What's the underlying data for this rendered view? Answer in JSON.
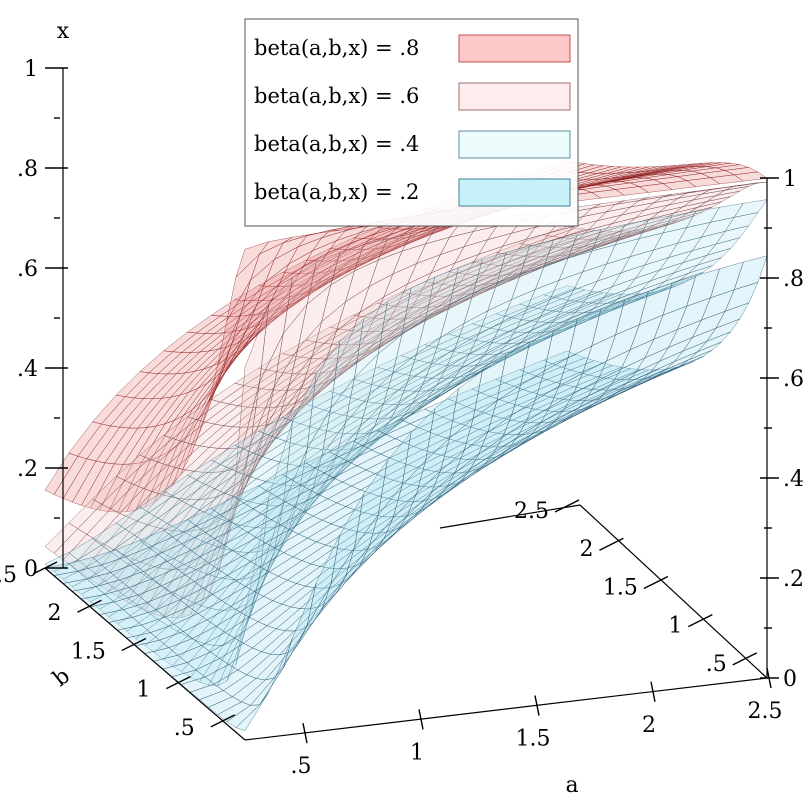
{
  "chart_data": {
    "type": "surface3d",
    "title": "",
    "xlabel": "a",
    "ylabel": "b",
    "zlabel": "x",
    "xlim": [
      0.25,
      2.5
    ],
    "ylim": [
      0.25,
      2.5
    ],
    "zlim": [
      0,
      1
    ],
    "x_ticks": [
      ".5",
      "1",
      "1.5",
      "2",
      "2.5"
    ],
    "y_ticks": [
      ".5",
      "1",
      "1.5",
      "2",
      "2.5"
    ],
    "z_ticks": [
      "0",
      ".2",
      ".4",
      ".6",
      ".8",
      "1"
    ],
    "legend": {
      "position": "top",
      "entries": [
        {
          "label": "beta(a,b,x) = .8",
          "color": "#ffc8c8",
          "stroke": "#c05050"
        },
        {
          "label": "beta(a,b,x) = .6",
          "color": "#ffecec",
          "stroke": "#a07070"
        },
        {
          "label": "beta(a,b,x) = .4",
          "color": "#ecfbfc",
          "stroke": "#5d8fa0"
        },
        {
          "label": "beta(a,b,x) = .2",
          "color": "#c8f2fa",
          "stroke": "#3f7f98"
        }
      ]
    },
    "series": [
      {
        "name": "beta(a,b,x) = .8",
        "level": 0.8,
        "color": "#e88f8f",
        "edge": "#8b1a1a"
      },
      {
        "name": "beta(a,b,x) = .6",
        "level": 0.6,
        "color": "#f3c6c6",
        "edge": "#6b3535"
      },
      {
        "name": "beta(a,b,x) = .4",
        "level": 0.4,
        "color": "#bfe6ee",
        "edge": "#2d5f77"
      },
      {
        "name": "beta(a,b,x) = .2",
        "level": 0.2,
        "color": "#a9dff0",
        "edge": "#1f4f6b"
      }
    ]
  }
}
